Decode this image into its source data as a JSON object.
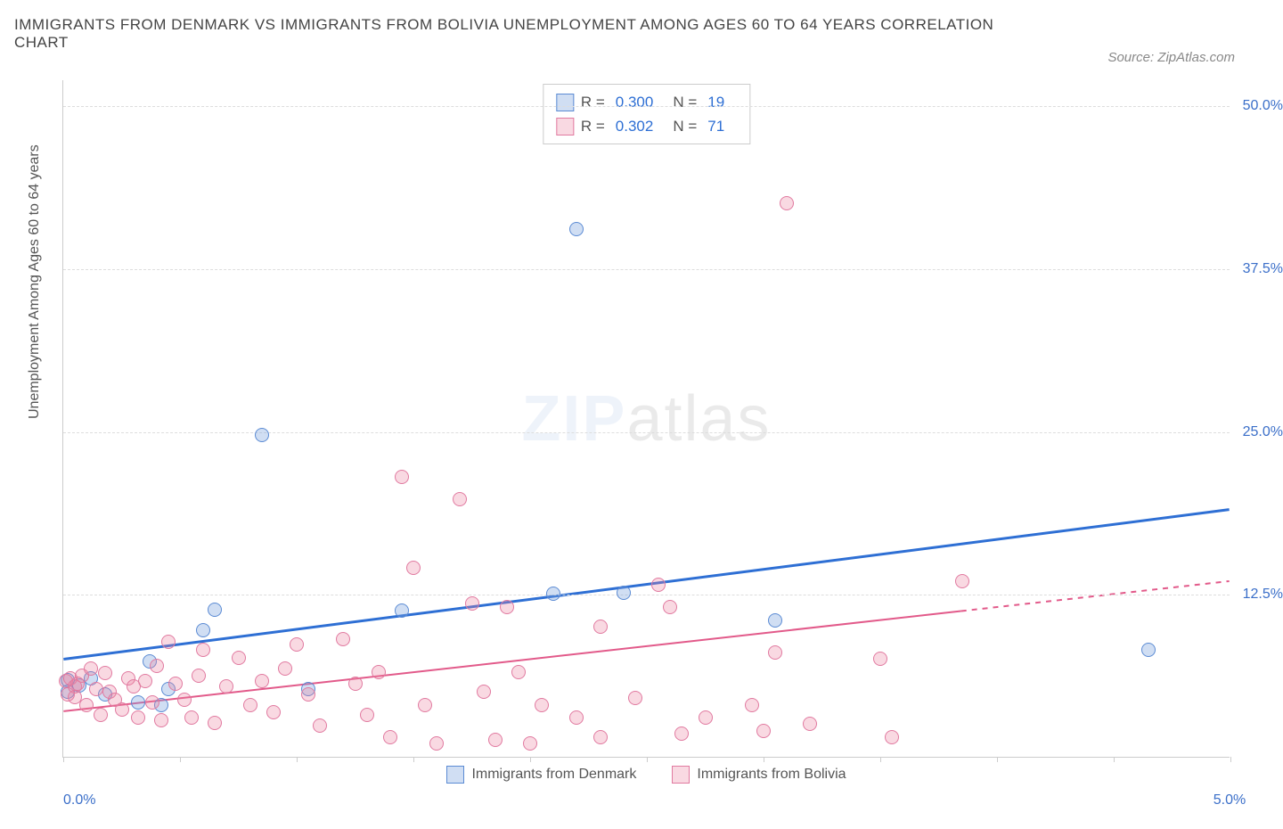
{
  "title": "IMMIGRANTS FROM DENMARK VS IMMIGRANTS FROM BOLIVIA UNEMPLOYMENT AMONG AGES 60 TO 64 YEARS CORRELATION CHART",
  "source": "Source: ZipAtlas.com",
  "watermark_zip": "ZIP",
  "watermark_atlas": "atlas",
  "chart": {
    "type": "scatter",
    "y_label": "Unemployment Among Ages 60 to 64 years",
    "xlim": [
      0.0,
      5.0
    ],
    "ylim": [
      0.0,
      52.0
    ],
    "x_ticks": [
      0.0,
      0.5,
      1.0,
      1.5,
      2.0,
      2.5,
      3.0,
      3.5,
      4.0,
      4.5,
      5.0
    ],
    "x_tick_labels": {
      "first": "0.0%",
      "last": "5.0%"
    },
    "y_ticks": [
      12.5,
      25.0,
      37.5,
      50.0
    ],
    "y_tick_labels": [
      "12.5%",
      "25.0%",
      "37.5%",
      "50.0%"
    ],
    "grid_color": "#dddddd",
    "background_color": "#ffffff",
    "axis_color": "#cccccc",
    "series": [
      {
        "name": "Immigrants from Denmark",
        "marker_fill": "rgba(120,160,220,0.35)",
        "marker_stroke": "#5b8bd4",
        "marker_radius": 8,
        "line_color": "#2e6fd4",
        "line_width": 3,
        "trend": {
          "x1": 0.0,
          "y1": 7.5,
          "x2": 5.0,
          "y2": 19.0,
          "xmax_solid": 5.0
        },
        "R": "0.300",
        "N": "19",
        "points": [
          [
            0.02,
            5.9
          ],
          [
            0.07,
            5.5
          ],
          [
            0.12,
            6.0
          ],
          [
            0.18,
            4.8
          ],
          [
            0.32,
            4.2
          ],
          [
            0.37,
            7.3
          ],
          [
            0.42,
            4.0
          ],
          [
            0.45,
            5.2
          ],
          [
            0.6,
            9.7
          ],
          [
            0.65,
            11.3
          ],
          [
            0.85,
            24.7
          ],
          [
            1.05,
            5.2
          ],
          [
            1.45,
            11.2
          ],
          [
            2.1,
            12.5
          ],
          [
            2.4,
            12.6
          ],
          [
            3.05,
            10.5
          ],
          [
            4.65,
            8.2
          ],
          [
            2.2,
            40.5
          ],
          [
            0.02,
            5.0
          ]
        ]
      },
      {
        "name": "Immigrants from Bolivia",
        "marker_fill": "rgba(235,130,160,0.30)",
        "marker_stroke": "#e17aa0",
        "marker_radius": 8,
        "line_color": "#e25a8a",
        "line_width": 2,
        "trend": {
          "x1": 0.0,
          "y1": 3.5,
          "x2": 5.0,
          "y2": 13.5,
          "xmax_solid": 3.85
        },
        "R": "0.302",
        "N": "71",
        "points": [
          [
            0.01,
            5.8
          ],
          [
            0.03,
            6.0
          ],
          [
            0.05,
            5.4
          ],
          [
            0.05,
            4.6
          ],
          [
            0.08,
            6.2
          ],
          [
            0.1,
            4.0
          ],
          [
            0.12,
            6.8
          ],
          [
            0.14,
            5.2
          ],
          [
            0.16,
            3.2
          ],
          [
            0.18,
            6.4
          ],
          [
            0.2,
            5.0
          ],
          [
            0.22,
            4.4
          ],
          [
            0.25,
            3.6
          ],
          [
            0.28,
            6.0
          ],
          [
            0.3,
            5.4
          ],
          [
            0.32,
            3.0
          ],
          [
            0.35,
            5.8
          ],
          [
            0.38,
            4.2
          ],
          [
            0.4,
            7.0
          ],
          [
            0.42,
            2.8
          ],
          [
            0.45,
            8.8
          ],
          [
            0.48,
            5.6
          ],
          [
            0.52,
            4.4
          ],
          [
            0.55,
            3.0
          ],
          [
            0.58,
            6.2
          ],
          [
            0.6,
            8.2
          ],
          [
            0.65,
            2.6
          ],
          [
            0.7,
            5.4
          ],
          [
            0.75,
            7.6
          ],
          [
            0.8,
            4.0
          ],
          [
            0.85,
            5.8
          ],
          [
            0.9,
            3.4
          ],
          [
            0.95,
            6.8
          ],
          [
            1.0,
            8.6
          ],
          [
            1.05,
            4.8
          ],
          [
            1.1,
            2.4
          ],
          [
            1.2,
            9.0
          ],
          [
            1.25,
            5.6
          ],
          [
            1.3,
            3.2
          ],
          [
            1.35,
            6.5
          ],
          [
            1.4,
            1.5
          ],
          [
            1.45,
            21.5
          ],
          [
            1.5,
            14.5
          ],
          [
            1.55,
            4.0
          ],
          [
            1.6,
            1.0
          ],
          [
            1.7,
            19.8
          ],
          [
            1.75,
            11.8
          ],
          [
            1.8,
            5.0
          ],
          [
            1.85,
            1.3
          ],
          [
            1.9,
            11.5
          ],
          [
            1.95,
            6.5
          ],
          [
            2.0,
            1.0
          ],
          [
            2.05,
            4.0
          ],
          [
            2.2,
            3.0
          ],
          [
            2.3,
            10.0
          ],
          [
            2.3,
            1.5
          ],
          [
            2.45,
            4.5
          ],
          [
            2.55,
            13.2
          ],
          [
            2.6,
            11.5
          ],
          [
            2.65,
            1.8
          ],
          [
            2.75,
            3.0
          ],
          [
            2.95,
            4.0
          ],
          [
            3.0,
            2.0
          ],
          [
            3.05,
            8.0
          ],
          [
            3.1,
            42.5
          ],
          [
            3.2,
            2.5
          ],
          [
            3.5,
            7.5
          ],
          [
            3.55,
            1.5
          ],
          [
            3.85,
            13.5
          ],
          [
            0.02,
            4.8
          ],
          [
            0.06,
            5.6
          ]
        ]
      }
    ],
    "legend_labels": {
      "R": "R =",
      "N": "N ="
    },
    "bottom_legend_series": [
      "Immigrants from Denmark",
      "Immigrants from Bolivia"
    ]
  }
}
